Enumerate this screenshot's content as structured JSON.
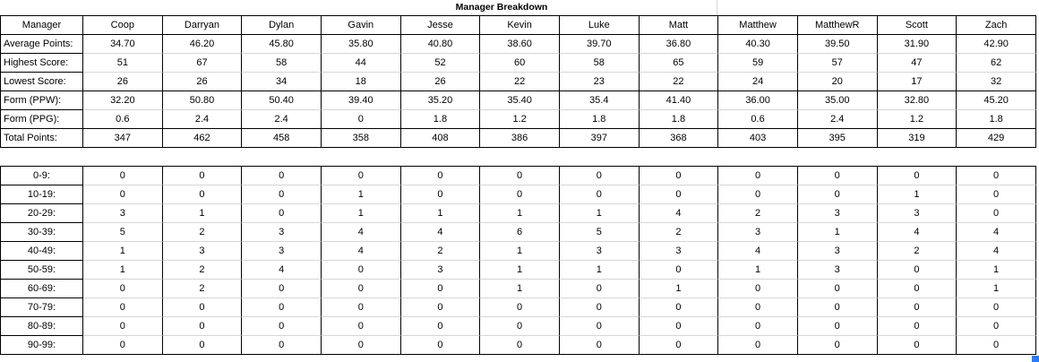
{
  "title": "Manager Breakdown",
  "managers": [
    "Coop",
    "Darryan",
    "Dylan",
    "Gavin",
    "Jesse",
    "Kevin",
    "Luke",
    "Matt",
    "Matthew",
    "MatthewR",
    "Scott",
    "Zach"
  ],
  "stats_table": {
    "header_label": "Manager",
    "rows": [
      {
        "label": "Average Points:",
        "values": [
          "34.70",
          "46.20",
          "45.80",
          "35.80",
          "40.80",
          "38.60",
          "39.70",
          "36.80",
          "40.30",
          "39.50",
          "31.90",
          "42.90"
        ]
      },
      {
        "label": "Highest Score:",
        "values": [
          "51",
          "67",
          "58",
          "44",
          "52",
          "60",
          "58",
          "65",
          "59",
          "57",
          "47",
          "62"
        ]
      },
      {
        "label": "Lowest Score:",
        "values": [
          "26",
          "26",
          "34",
          "18",
          "26",
          "22",
          "23",
          "22",
          "24",
          "20",
          "17",
          "32"
        ]
      },
      {
        "label": "Form (PPW):",
        "values": [
          "32.20",
          "50.80",
          "50.40",
          "39.40",
          "35.20",
          "35.40",
          "35.4",
          "41.40",
          "36.00",
          "35.00",
          "32.80",
          "45.20"
        ]
      },
      {
        "label": "Form (PPG):",
        "values": [
          "0.6",
          "2.4",
          "2.4",
          "0",
          "1.8",
          "1.2",
          "1.8",
          "1.8",
          "0.6",
          "2.4",
          "1.2",
          "1.8"
        ]
      },
      {
        "label": "Total Points:",
        "values": [
          "347",
          "462",
          "458",
          "358",
          "408",
          "386",
          "397",
          "368",
          "403",
          "395",
          "319",
          "429"
        ]
      }
    ]
  },
  "distribution_table": {
    "rows": [
      {
        "label": "0-9:",
        "values": [
          "0",
          "0",
          "0",
          "0",
          "0",
          "0",
          "0",
          "0",
          "0",
          "0",
          "0",
          "0"
        ]
      },
      {
        "label": "10-19:",
        "values": [
          "0",
          "0",
          "0",
          "1",
          "0",
          "0",
          "0",
          "0",
          "0",
          "0",
          "1",
          "0"
        ]
      },
      {
        "label": "20-29:",
        "values": [
          "3",
          "1",
          "0",
          "1",
          "1",
          "1",
          "1",
          "4",
          "2",
          "3",
          "3",
          "0"
        ]
      },
      {
        "label": "30-39:",
        "values": [
          "5",
          "2",
          "3",
          "4",
          "4",
          "6",
          "5",
          "2",
          "3",
          "1",
          "4",
          "4"
        ]
      },
      {
        "label": "40-49:",
        "values": [
          "1",
          "3",
          "3",
          "4",
          "2",
          "1",
          "3",
          "3",
          "4",
          "3",
          "2",
          "4"
        ]
      },
      {
        "label": "50-59:",
        "values": [
          "1",
          "2",
          "4",
          "0",
          "3",
          "1",
          "1",
          "0",
          "1",
          "3",
          "0",
          "1"
        ]
      },
      {
        "label": "60-69:",
        "values": [
          "0",
          "2",
          "0",
          "0",
          "0",
          "1",
          "0",
          "1",
          "0",
          "0",
          "0",
          "1"
        ]
      },
      {
        "label": "70-79:",
        "values": [
          "0",
          "0",
          "0",
          "0",
          "0",
          "0",
          "0",
          "0",
          "0",
          "0",
          "0",
          "0"
        ]
      },
      {
        "label": "80-89:",
        "values": [
          "0",
          "0",
          "0",
          "0",
          "0",
          "0",
          "0",
          "0",
          "0",
          "0",
          "0",
          "0"
        ]
      },
      {
        "label": "90-99:",
        "values": [
          "0",
          "0",
          "0",
          "0",
          "0",
          "0",
          "0",
          "0",
          "0",
          "0",
          "0",
          "0"
        ]
      }
    ]
  },
  "colors": {
    "border": "#000000",
    "gridline": "#d6d6d6",
    "selection_blue": "#2b7df7"
  }
}
